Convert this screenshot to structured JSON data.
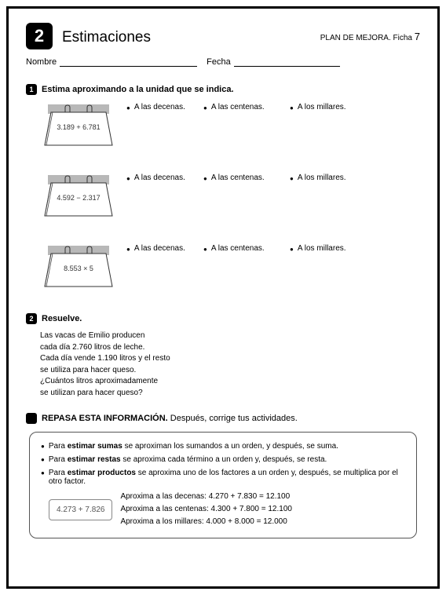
{
  "header": {
    "unit_number": "2",
    "title": "Estimaciones",
    "plan_label": "PLAN DE MEJORA. Ficha",
    "plan_number": "7"
  },
  "fields": {
    "nombre_label": "Nombre",
    "fecha_label": "Fecha"
  },
  "task1": {
    "number": "1",
    "title": "Estima aproximando a la unidad que se indica.",
    "col_labels": [
      "A las decenas.",
      "A las centenas.",
      "A los millares."
    ],
    "rows": [
      {
        "expression": "3.189 + 6.781"
      },
      {
        "expression": "4.592 − 2.317"
      },
      {
        "expression": "8.553 × 5"
      }
    ]
  },
  "task2": {
    "number": "2",
    "title": "Resuelve.",
    "problem": [
      "Las vacas de Emilio producen",
      "cada día 2.760 litros de leche.",
      "Cada día vende 1.190 litros y el resto",
      "se utiliza para hacer queso.",
      "¿Cuántos litros aproximadamente",
      "se utilizan para hacer queso?"
    ]
  },
  "repasa": {
    "title_bold": "REPASA ESTA INFORMACIÓN.",
    "title_rest": " Después, corrige tus actividades.",
    "bullets": [
      {
        "pre": "Para ",
        "bold": "estimar sumas",
        "post": " se aproximan los sumandos a un orden, y después, se suma."
      },
      {
        "pre": "Para ",
        "bold": "estimar restas",
        "post": " se aproxima cada término a un orden y, después, se resta."
      },
      {
        "pre": "Para ",
        "bold": "estimar productos",
        "post": " se aproxima uno de los factores a un orden y, después, se multiplica por el otro factor."
      }
    ],
    "example_expr": "4.273 + 7.826",
    "example_lines": [
      "Aproxima a las decenas: 4.270 + 7.830 = 12.100",
      "Aproxima a las centenas: 4.300 + 7.800 = 12.100",
      "Aproxima a los millares: 4.000 + 8.000 = 12.000"
    ]
  },
  "colors": {
    "easel_back": "#b8b8b8",
    "easel_paper": "#ffffff",
    "easel_stroke": "#333333"
  }
}
